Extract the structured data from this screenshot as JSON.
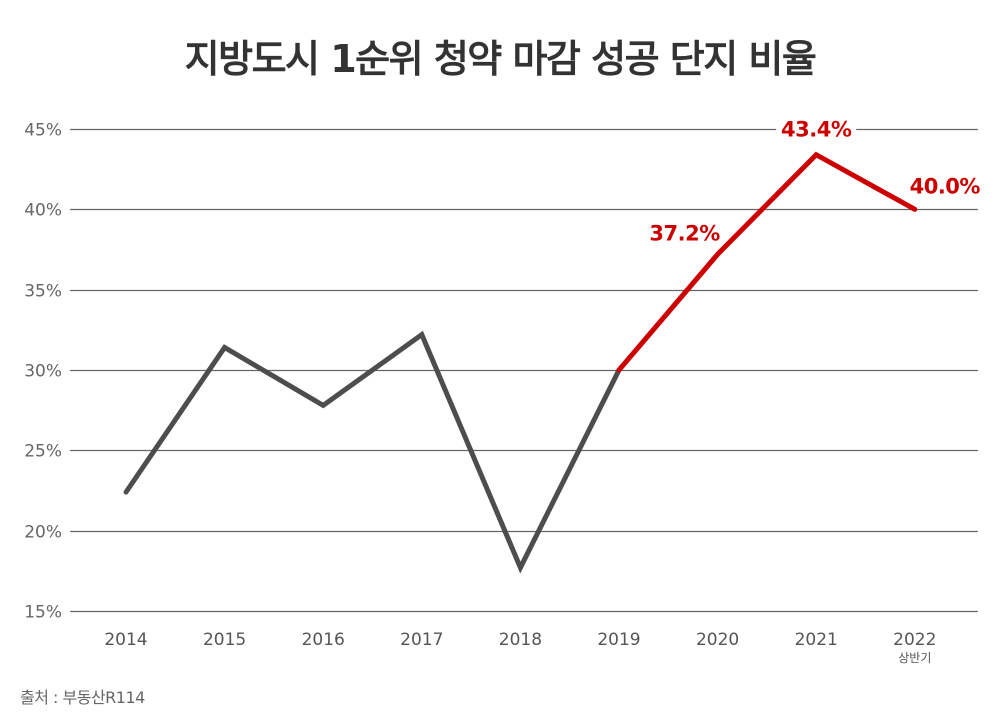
{
  "title": "지방도시 1순위 청약 마감 성공 단지 비율",
  "source": "출처 : 부동산R114",
  "colors": {
    "grid": "#666666",
    "line_default": "#4d4d4d",
    "line_highlight": "#cc0000",
    "title": "#333333"
  },
  "chart_data": {
    "type": "line",
    "title": "지방도시 1순위 청약 마감 성공 단지 비율",
    "xlabel": "",
    "ylabel": "",
    "categories": [
      "2014",
      "2015",
      "2016",
      "2017",
      "2018",
      "2019",
      "2020",
      "2021",
      "2022"
    ],
    "category_sublabels": [
      "",
      "",
      "",
      "",
      "",
      "",
      "",
      "",
      "상반기"
    ],
    "series": [
      {
        "name": "1순위 청약 마감 성공 단지 비율",
        "values": [
          22.4,
          31.4,
          27.8,
          32.2,
          17.7,
          30.0,
          37.2,
          43.4,
          40.0
        ],
        "highlight_from_index": 5
      }
    ],
    "data_labels": [
      {
        "index": 6,
        "text": "37.2%"
      },
      {
        "index": 7,
        "text": "43.4%"
      },
      {
        "index": 8,
        "text": "40.0%"
      }
    ],
    "yticks": [
      "45%",
      "40%",
      "35%",
      "30%",
      "25%",
      "20%",
      "15%"
    ],
    "ytick_values": [
      45,
      40,
      35,
      30,
      25,
      20,
      15
    ],
    "ylim": [
      15,
      45
    ],
    "grid": true,
    "legend": "none"
  }
}
